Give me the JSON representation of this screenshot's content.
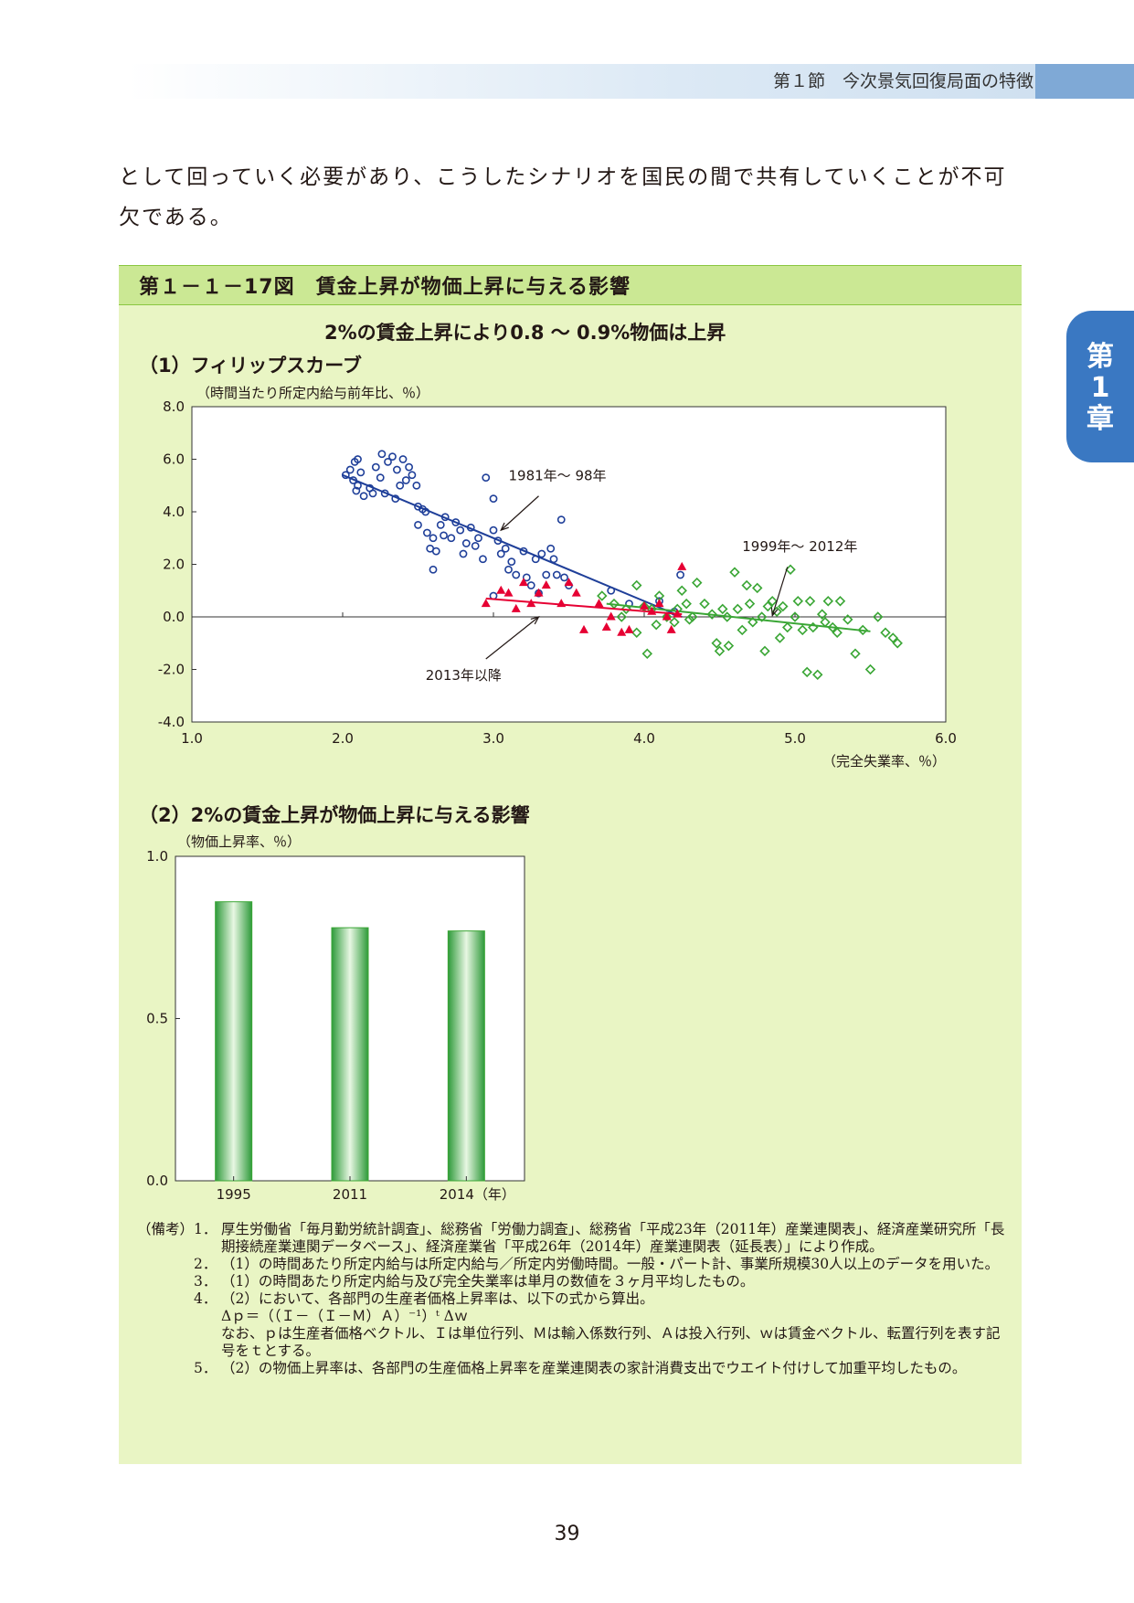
{
  "header": {
    "section": "第１節　今次景気回復局面の特徴"
  },
  "chapter_tab": [
    "第",
    "1",
    "章"
  ],
  "body_text": "として回っていく必要があり、こうしたシナリオを国民の間で共有していくことが不可欠である。",
  "figure": {
    "title": "第１－１－17図　賃金上昇が物価上昇に与える影響",
    "subtitle": "2%の賃金上昇により0.8 ～ 0.9%物価は上昇"
  },
  "chart_data": [
    {
      "type": "scatter",
      "title": "（1）フィリップスカーブ",
      "ylabel": "（時間当たり所定内給与前年比、％）",
      "xlabel": "（完全失業率、％）",
      "xlim": [
        1.0,
        6.0
      ],
      "ylim": [
        -4.0,
        8.0
      ],
      "x_ticks": [
        "1.0",
        "2.0",
        "3.0",
        "4.0",
        "5.0",
        "6.0"
      ],
      "y_ticks": [
        "8.0",
        "6.0",
        "4.0",
        "2.0",
        "0.0",
        "-2.0",
        "-4.0"
      ],
      "annotations": [
        "1981年～ 98年",
        "1999年～ 2012年",
        "2013年以降"
      ],
      "series": [
        {
          "name": "1981年～ 98年",
          "marker": "circle",
          "color": "#1f3f99",
          "trend": [
            [
              2.0,
              5.4
            ],
            [
              4.25,
              0.0
            ]
          ],
          "points": [
            [
              2.02,
              5.4
            ],
            [
              2.05,
              5.6
            ],
            [
              2.07,
              5.2
            ],
            [
              2.08,
              5.9
            ],
            [
              2.09,
              4.8
            ],
            [
              2.1,
              6.0
            ],
            [
              2.1,
              5.0
            ],
            [
              2.12,
              5.5
            ],
            [
              2.14,
              4.6
            ],
            [
              2.18,
              4.9
            ],
            [
              2.2,
              4.7
            ],
            [
              2.22,
              5.7
            ],
            [
              2.25,
              5.3
            ],
            [
              2.26,
              6.2
            ],
            [
              2.28,
              4.7
            ],
            [
              2.3,
              5.9
            ],
            [
              2.33,
              6.1
            ],
            [
              2.35,
              4.5
            ],
            [
              2.36,
              5.6
            ],
            [
              2.38,
              5.0
            ],
            [
              2.4,
              6.0
            ],
            [
              2.42,
              5.2
            ],
            [
              2.44,
              5.7
            ],
            [
              2.46,
              5.4
            ],
            [
              2.49,
              5.0
            ],
            [
              2.5,
              4.2
            ],
            [
              2.5,
              3.5
            ],
            [
              2.53,
              4.1
            ],
            [
              2.55,
              4.0
            ],
            [
              2.56,
              3.2
            ],
            [
              2.58,
              2.6
            ],
            [
              2.6,
              3.0
            ],
            [
              2.6,
              1.8
            ],
            [
              2.62,
              2.5
            ],
            [
              2.65,
              3.5
            ],
            [
              2.67,
              3.1
            ],
            [
              2.68,
              3.8
            ],
            [
              2.72,
              3.0
            ],
            [
              2.75,
              3.6
            ],
            [
              2.78,
              3.3
            ],
            [
              2.8,
              2.4
            ],
            [
              2.82,
              2.8
            ],
            [
              2.85,
              3.4
            ],
            [
              2.88,
              2.7
            ],
            [
              2.9,
              3.0
            ],
            [
              2.93,
              2.2
            ],
            [
              2.95,
              5.3
            ],
            [
              3.0,
              4.5
            ],
            [
              3.0,
              3.3
            ],
            [
              3.03,
              2.9
            ],
            [
              3.05,
              2.4
            ],
            [
              3.08,
              2.6
            ],
            [
              3.1,
              1.8
            ],
            [
              3.12,
              2.1
            ],
            [
              3.15,
              1.6
            ],
            [
              3.2,
              2.5
            ],
            [
              3.22,
              1.5
            ],
            [
              3.25,
              1.2
            ],
            [
              3.28,
              2.2
            ],
            [
              3.3,
              0.9
            ],
            [
              3.32,
              2.4
            ],
            [
              3.35,
              1.6
            ],
            [
              3.38,
              2.6
            ],
            [
              3.4,
              2.2
            ],
            [
              3.42,
              1.6
            ],
            [
              3.45,
              3.7
            ],
            [
              3.47,
              1.5
            ],
            [
              3.5,
              1.2
            ],
            [
              3.0,
              0.8
            ],
            [
              3.78,
              1.0
            ],
            [
              3.9,
              0.5
            ],
            [
              4.1,
              0.6
            ],
            [
              4.2,
              0.2
            ],
            [
              4.24,
              1.6
            ]
          ]
        },
        {
          "name": "1999年～ 2012年",
          "marker": "diamond",
          "color": "#3aa635",
          "trend": [
            [
              3.75,
              0.5
            ],
            [
              5.5,
              -0.55
            ]
          ],
          "points": [
            [
              3.72,
              0.8
            ],
            [
              3.8,
              0.5
            ],
            [
              3.85,
              0.0
            ],
            [
              3.88,
              0.3
            ],
            [
              3.95,
              -0.6
            ],
            [
              3.95,
              1.2
            ],
            [
              4.0,
              0.4
            ],
            [
              4.02,
              -1.4
            ],
            [
              4.05,
              0.3
            ],
            [
              4.08,
              -0.3
            ],
            [
              4.1,
              0.8
            ],
            [
              4.15,
              0.0
            ],
            [
              4.2,
              -0.2
            ],
            [
              4.22,
              0.3
            ],
            [
              4.25,
              1.0
            ],
            [
              4.28,
              0.5
            ],
            [
              4.3,
              -0.1
            ],
            [
              4.32,
              0.0
            ],
            [
              4.35,
              1.3
            ],
            [
              4.4,
              0.5
            ],
            [
              4.45,
              0.1
            ],
            [
              4.48,
              -1.0
            ],
            [
              4.5,
              -1.3
            ],
            [
              4.52,
              0.3
            ],
            [
              4.55,
              0.0
            ],
            [
              4.56,
              -1.1
            ],
            [
              4.6,
              1.7
            ],
            [
              4.62,
              0.3
            ],
            [
              4.65,
              -0.5
            ],
            [
              4.68,
              1.2
            ],
            [
              4.7,
              0.5
            ],
            [
              4.72,
              -0.2
            ],
            [
              4.75,
              1.1
            ],
            [
              4.78,
              0.0
            ],
            [
              4.8,
              -1.3
            ],
            [
              4.82,
              0.4
            ],
            [
              4.85,
              0.6
            ],
            [
              4.88,
              0.2
            ],
            [
              4.9,
              -0.8
            ],
            [
              4.92,
              0.4
            ],
            [
              4.95,
              -0.4
            ],
            [
              4.97,
              1.8
            ],
            [
              5.0,
              0.0
            ],
            [
              5.02,
              0.6
            ],
            [
              5.05,
              -0.5
            ],
            [
              5.08,
              -2.1
            ],
            [
              5.1,
              0.6
            ],
            [
              5.12,
              -0.4
            ],
            [
              5.15,
              -2.2
            ],
            [
              5.18,
              0.1
            ],
            [
              5.2,
              -0.2
            ],
            [
              5.22,
              0.6
            ],
            [
              5.25,
              -0.4
            ],
            [
              5.28,
              -0.6
            ],
            [
              5.3,
              0.6
            ],
            [
              5.35,
              -0.1
            ],
            [
              5.4,
              -1.4
            ],
            [
              5.45,
              -0.5
            ],
            [
              5.5,
              -2.0
            ],
            [
              5.55,
              0.0
            ],
            [
              5.6,
              -0.6
            ],
            [
              5.65,
              -0.8
            ],
            [
              5.68,
              -1.0
            ]
          ]
        },
        {
          "name": "2013年以降",
          "marker": "triangle",
          "color": "#e60033",
          "trend": [
            [
              2.95,
              0.7
            ],
            [
              4.25,
              0.1
            ]
          ],
          "points": [
            [
              2.95,
              0.5
            ],
            [
              3.05,
              1.0
            ],
            [
              3.1,
              0.9
            ],
            [
              3.15,
              0.3
            ],
            [
              3.2,
              1.3
            ],
            [
              3.25,
              0.5
            ],
            [
              3.3,
              0.9
            ],
            [
              3.35,
              1.2
            ],
            [
              3.45,
              0.5
            ],
            [
              3.5,
              1.3
            ],
            [
              3.55,
              0.9
            ],
            [
              3.6,
              -0.5
            ],
            [
              3.7,
              0.5
            ],
            [
              3.75,
              -0.4
            ],
            [
              3.78,
              0.0
            ],
            [
              3.85,
              -0.6
            ],
            [
              3.9,
              -0.5
            ],
            [
              4.0,
              0.4
            ],
            [
              4.05,
              0.2
            ],
            [
              4.1,
              0.5
            ],
            [
              4.15,
              0.0
            ],
            [
              4.18,
              -0.5
            ],
            [
              4.22,
              0.1
            ],
            [
              4.25,
              1.9
            ]
          ]
        }
      ]
    },
    {
      "type": "bar",
      "title": "（2）2%の賃金上昇が物価上昇に与える影響",
      "ylabel": "（物価上昇率、％）",
      "ylim": [
        0.0,
        1.0
      ],
      "y_ticks": [
        "1.0",
        "0.5",
        "0.0"
      ],
      "categories": [
        "1995",
        "2011",
        "2014（年）"
      ],
      "values": [
        0.86,
        0.78,
        0.77
      ],
      "color": "#3aa635"
    }
  ],
  "notes": [
    {
      "label": "（備考）",
      "num": "1．",
      "text": "厚生労働省「毎月勤労統計調査」、総務省「労働力調査」、総務省「平成23年（2011年）産業連関表」、経済産業研究所「長期接続産業連関データベース」、経済産業省「平成26年（2014年）産業連関表（延長表）」により作成。"
    },
    {
      "label": "",
      "num": "2．",
      "text": "（1）の時間あたり所定内給与は所定内給与／所定内労働時間。一般・パート計、事業所規模30人以上のデータを用いた。"
    },
    {
      "label": "",
      "num": "3．",
      "text": "（1）の時間あたり所定内給与及び完全失業率は単月の数値を３ヶ月平均したもの。"
    },
    {
      "label": "",
      "num": "4．",
      "text": "（2）において、各部門の生産者価格上昇率は、以下の式から算出。"
    },
    {
      "label": "",
      "num": "",
      "text": "Δｐ＝（（Ｉ－（Ｉ－Ｍ）Ａ）⁻¹）ᵗ Δｗ"
    },
    {
      "label": "",
      "num": "",
      "text": "なお、ｐは生産者価格ベクトル、Ｉは単位行列、Ｍは輸入係数行列、Ａは投入行列、ｗは賃金ベクトル、転置行列を表す記号をｔとする。"
    },
    {
      "label": "",
      "num": "5．",
      "text": "（2）の物価上昇率は、各部門の生産価格上昇率を産業連関表の家計消費支出でウエイト付けして加重平均したもの。"
    }
  ],
  "page_number": "39"
}
